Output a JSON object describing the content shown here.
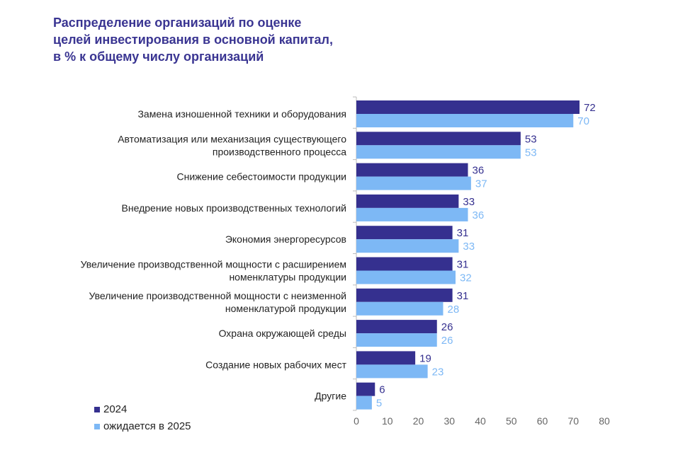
{
  "title_lines": [
    "Распределение организаций по оценке",
    "целей инвестирования в основной капитал,",
    "в % к общему числу организаций"
  ],
  "colors": {
    "2024": "#35308f",
    "2025": "#7db8f5"
  },
  "chart_data": {
    "type": "bar",
    "orientation": "horizontal",
    "categories": [
      [
        "Замена изношенной техники и оборудования"
      ],
      [
        "Автоматизация или механизация существующего",
        "производственного процесса"
      ],
      [
        "Снижение себестоимости продукции"
      ],
      [
        "Внедрение новых производственных технологий"
      ],
      [
        "Экономия энергоресурсов"
      ],
      [
        "Увеличение производственной мощности с расширением",
        "номенклатуры продукции"
      ],
      [
        "Увеличение производственной мощности с неизменной",
        "номенклатурой продукции"
      ],
      [
        "Охрана окружающей среды"
      ],
      [
        "Создание новых рабочих мест"
      ],
      [
        "Другие"
      ]
    ],
    "series": [
      {
        "name": "2024",
        "values": [
          72,
          53,
          36,
          33,
          31,
          31,
          31,
          26,
          19,
          6
        ]
      },
      {
        "name": "ожидается в 2025",
        "values": [
          70,
          53,
          37,
          36,
          33,
          32,
          28,
          26,
          23,
          5
        ]
      }
    ],
    "xlim": [
      0,
      80
    ],
    "xticks": [
      0,
      10,
      20,
      30,
      40,
      50,
      60,
      70,
      80
    ],
    "grid": false,
    "legend_position": "bottom-left"
  }
}
